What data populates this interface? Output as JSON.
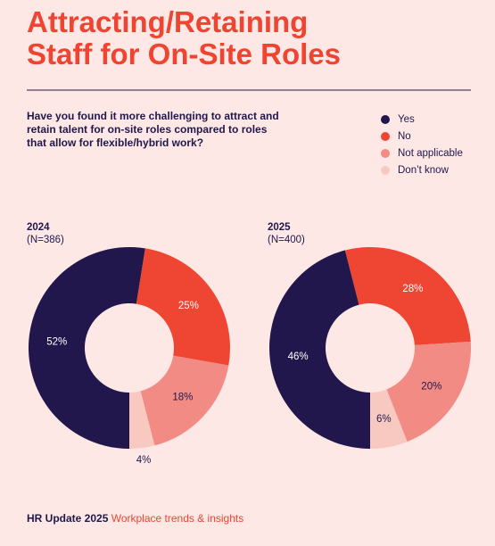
{
  "title": [
    "Attracting/Retaining",
    "Staff for On-Site Roles"
  ],
  "question": [
    "Have you found it more challenging to attract and",
    "retain talent for on-site roles compared to roles",
    "that allow for flexible/hybrid work?"
  ],
  "footer": {
    "brand": "HR Update 2025",
    "tagline": "Workplace trends & insights"
  },
  "chart_data": [
    {
      "type": "donut",
      "title": "2024",
      "subtitle": "(N=386)",
      "categories": [
        "Yes",
        "No",
        "Not applicable",
        "Don’t know"
      ],
      "values": [
        52,
        25,
        18,
        4
      ],
      "value_labels": [
        "52%",
        "25%",
        "18%",
        "4%"
      ],
      "colors": [
        "#21174c",
        "#ef4634",
        "#f28b84",
        "#f8c9c1"
      ],
      "legend": "top-right"
    },
    {
      "type": "donut",
      "title": "2025",
      "subtitle": "(N=400)",
      "categories": [
        "Yes",
        "No",
        "Not applicable",
        "Don’t know"
      ],
      "values": [
        46,
        28,
        20,
        6
      ],
      "value_labels": [
        "46%",
        "28%",
        "20%",
        "6%"
      ],
      "colors": [
        "#21174c",
        "#ef4634",
        "#f28b84",
        "#f8c9c1"
      ]
    }
  ]
}
